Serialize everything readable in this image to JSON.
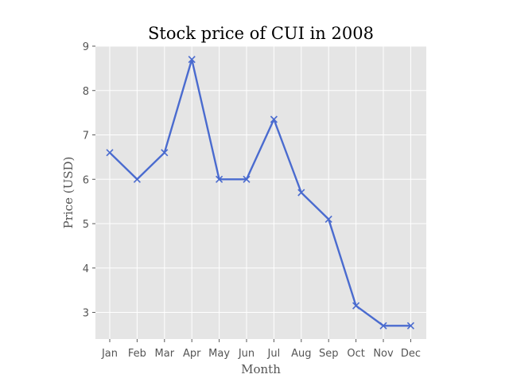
{
  "chart_data": {
    "type": "line",
    "title": "Stock price of CUI in 2008",
    "xlabel": "Month",
    "ylabel": "Price (USD)",
    "categories": [
      "Jan",
      "Feb",
      "Mar",
      "Apr",
      "May",
      "Jun",
      "Jul",
      "Aug",
      "Sep",
      "Oct",
      "Nov",
      "Dec"
    ],
    "series": [
      {
        "values": [
          6.6,
          6.0,
          6.6,
          8.7,
          6.0,
          6.0,
          7.35,
          5.7,
          5.1,
          3.15,
          2.7,
          2.7
        ]
      }
    ],
    "yticks": [
      3,
      4,
      5,
      6,
      7,
      8,
      9
    ],
    "ylim": [
      2.4,
      9
    ],
    "grid": true,
    "marker": "x",
    "line_color": "#4a6bcf",
    "plot_background": "#e5e5e5",
    "grid_color": "#ffffff"
  }
}
